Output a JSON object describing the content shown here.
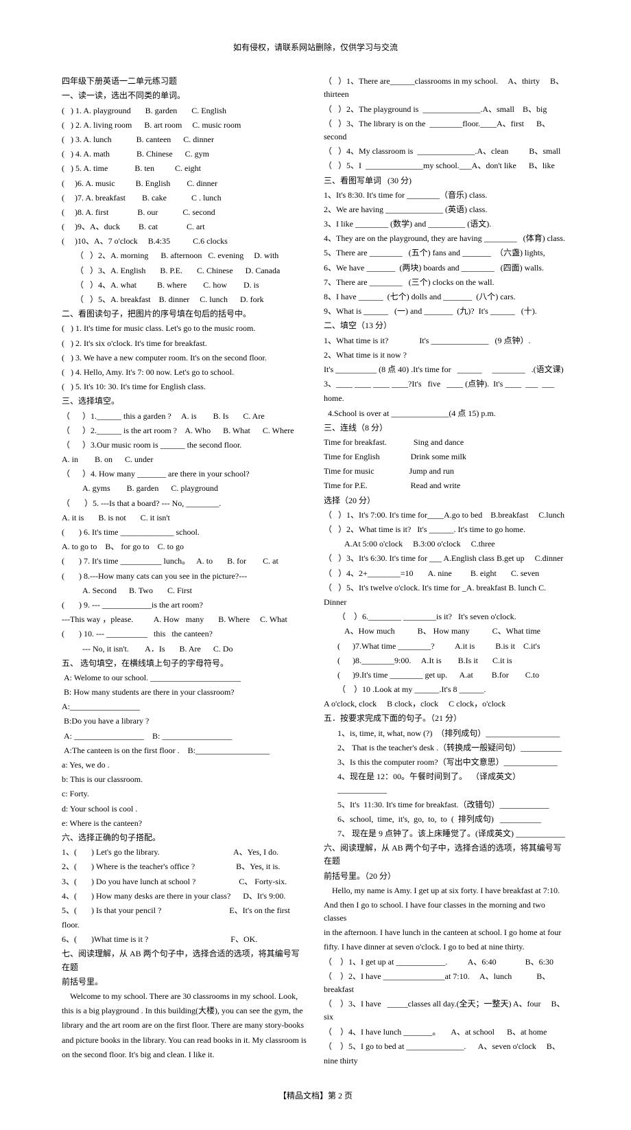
{
  "header_note": "如有侵权，请联系网站删除，仅供学习与交流",
  "left": [
    {
      "t": "四年级下册英语一二单元练习题"
    },
    {
      "t": "一、读一读，选出不同类的单词。"
    },
    {
      "t": "(   ) 1. A. playground       B. garden       C. English"
    },
    {
      "t": "(   ) 2. A. living room      B. art room     C. music room"
    },
    {
      "t": "(   ) 3. A. lunch            B. canteen      C. dinner"
    },
    {
      "t": "(   ) 4. A. math             B. Chinese      C. gym"
    },
    {
      "t": "(   ) 5. A. time             B. ten          C. eight"
    },
    {
      "t": "(     )6. A. music          B. English        C. dinner"
    },
    {
      "t": "(     )7. A. breakfast        B. cake            C . lunch"
    },
    {
      "t": "(     )8. A. first              B. our            C. second"
    },
    {
      "t": "(     )9、A、duck         B. cat              C. art"
    },
    {
      "t": "(     )10、A、7 o'clock     B.4:35           C.6 clocks"
    },
    {
      "t": "（   ）2、A. morning      B. afternoon   C. evening     D. with",
      "cls": "indent1"
    },
    {
      "t": "（   ）3、A. English       B. P.E.       C. Chinese      D. Canada",
      "cls": "indent1"
    },
    {
      "t": "（   ）4、A. what          B. where        C. how        D. is",
      "cls": "indent1"
    },
    {
      "t": "（   ）5、A. breakfast    B. dinner     C. lunch      D. fork",
      "cls": "indent1"
    },
    {
      "t": "二、看图读句子，把图片的序号填在句后的括号中。"
    },
    {
      "t": "(   ) 1. It's time for music class. Let's go to the music room."
    },
    {
      "t": "(   ) 2. It's six o'clock. It's time for breakfast."
    },
    {
      "t": "(   ) 3. We have a new computer room. It's on the second floor."
    },
    {
      "t": "(   ) 4. Hello, Amy. It's 7: 00 now. Let's go to school."
    },
    {
      "t": "(   ) 5. It's 10: 30. It's time for English class."
    },
    {
      "t": "三、选择填空。"
    },
    {
      "t": "（      ）1.______ this a garden ?     A. is        B. Is       C. Are"
    },
    {
      "t": "（      ）2.______ is the art room ?    A. Who      B. What      C. Where"
    },
    {
      "t": "（      ）3.Our music room is ______ the second floor."
    },
    {
      "t": "A. in        B. on      C. under"
    },
    {
      "t": "（      ）4. How many _______ are there in your school?"
    },
    {
      "t": "A. gyms        B. garden      C. playground",
      "cls": "indent2"
    },
    {
      "t": "（       ）5. ---Is that a board? --- No, ________."
    },
    {
      "t": "A. it is       B. is not       C. it isn't"
    },
    {
      "t": "(       ) 6. It's time _____________ school."
    },
    {
      "t": "A. to go to    B、 for go to    C. to go"
    },
    {
      "t": "(       ) 7. It's time __________ lunch。   A. to       B. for        C. at"
    },
    {
      "t": "(       ) 8.---How many cats can you see in the picture?---"
    },
    {
      "t": "A. Second      B. Two       C. First",
      "cls": "indent2"
    },
    {
      "t": "(       ) 9. --- ____________is the art room?"
    },
    {
      "t": "---This way ，please.          A. How   many       B. Where     C. What"
    },
    {
      "t": "(       ) 10. --- __________   this   the canteen?"
    },
    {
      "t": "--- No, it isn't.        A．Is       B. Are      C. Do",
      "cls": "indent2"
    },
    {
      "t": "五、 选句填空，在横线填上句子的字母符号。"
    },
    {
      "t": " A: Welome to our school. ______________________"
    },
    {
      "t": " B: How many students are there in your classroom?"
    },
    {
      "t": "A:_________________"
    },
    {
      "t": " B:Do you have a library ?"
    },
    {
      "t": " A: _________________    B: _________________"
    },
    {
      "t": " A:The canteen is on the first floor .    B:__________________"
    },
    {
      "t": "a: Yes, we do ."
    },
    {
      "t": "b: This is our classroom."
    },
    {
      "t": "c: Forty."
    },
    {
      "t": "d: Your school is cool ."
    },
    {
      "t": "e: Where is the canteen?"
    },
    {
      "t": "六、选择正确的句子搭配。"
    },
    {
      "t": "1、(       ) Let's go the library.                                    A、Yes, I do."
    },
    {
      "t": "2、(       ) Where is the teacher's office ?                    B、Yes, it is."
    },
    {
      "t": "3、(       ) Do you have lunch at school ?                     C、 Forty-six."
    },
    {
      "t": "4、(       ) How many desks are there in your class?      D、It's 9:00."
    },
    {
      "t": "5、(       ) Is that your pencil ?                                 E、It's on the first"
    },
    {
      "t": "floor."
    },
    {
      "t": "6、(       )What time is it ?                                        F、OK."
    },
    {
      "t": "七、阅读理解，从 AB 两个句子中，选择合适的选项，将其编号写在题"
    },
    {
      "t": "前括号里。"
    },
    {
      "t": "    Welcome to my school. There are 30 classrooms in my school. Look,"
    },
    {
      "t": "this is a big playground . In this building(大楼), you can see the gym, the"
    },
    {
      "t": "library and the art room are on the first floor. There are many story-books"
    },
    {
      "t": "and picture books in the library. You can read books in it. My classroom is"
    },
    {
      "t": "on the second floor. It's big and clean. I like it."
    }
  ],
  "right": [
    {
      "t": "（   ）1、There are______classrooms in my school.     A、thirty     B、thirteen"
    },
    {
      "t": "（   ）2、The playground is  ______________.A、small    B、big"
    },
    {
      "t": "（   ）3、The library is on the  ________floor.____A、first      B、second"
    },
    {
      "t": "（   ）4、My classroom is  ______________.A、clean          B、small"
    },
    {
      "t": "（   ）5、I  ______________my school.___A、don't like      B、like"
    },
    {
      "t": "三、看图写单词   (30 分)"
    },
    {
      "t": "1、It's 8:30. It's time for ________（音乐) class."
    },
    {
      "t": "2、We are having ______________ (英语) class."
    },
    {
      "t": "3、I like ________ (数学) and _________ (语文)."
    },
    {
      "t": "4、They are on the playground, they are having ________   (体育) class."
    },
    {
      "t": "5、There are ________   (五个) fans and _______  （六盏) lights,"
    },
    {
      "t": "6、We have _______  (两块) boards and ________   (四面) walls."
    },
    {
      "t": "7、There are ________   (三个) clocks on the wall."
    },
    {
      "t": "8、I have ______  (七个) dolls and _______  (八个) cars."
    },
    {
      "t": "9、What is ______   (一) and _______  (九)?  It's ______   (十)."
    },
    {
      "t": "二、填空（13 分）"
    },
    {
      "t": "1、What time is it?               It's ______________   (9 点钟）."
    },
    {
      "t": "2、What time is it now ?"
    },
    {
      "t": "It's __________ (8 点 40) .It's time for   ______     ________   .(语文课)"
    },
    {
      "t": "3、____ ____ ____ ____?It's   five   ____ (点钟).  It's ____  ___  ___"
    },
    {
      "t": "home."
    },
    {
      "t": "  4.School is over at ______________(4 点 15) p.m."
    },
    {
      "t": "三、连线（8 分）"
    },
    {
      "t": "Time for breakfast.             Sing and dance"
    },
    {
      "t": "Time for English               Drink some milk"
    },
    {
      "t": "Time for music                 Jump and run"
    },
    {
      "t": "Time for P.E.                     Read and write"
    },
    {
      "t": "选择（20 分）"
    },
    {
      "t": "（   ）1、It's 7:00. It's time for____A.go to bed    B.breakfast     C.lunch"
    },
    {
      "t": "（   ）2、What time is it?   It's ______. It's time to go home."
    },
    {
      "t": "A.At 5:00 o'clock     B.3:00 o'clock     C.three",
      "cls": "indent2"
    },
    {
      "t": "（   ）3、It's 6:30. It's time for ___ A.English class B.get up     C.dinner"
    },
    {
      "t": "（   ）4、2+________=10       A. nine         B. eight       C. seven"
    },
    {
      "t": "（   ）5、It's twelve o'clock. It's time for _A. breakfast B. lunch C."
    },
    {
      "t": "Dinner"
    },
    {
      "t": "（    ）6.________ ________is it?   It's seven o'clock.",
      "cls": "indent1"
    },
    {
      "t": "A、How much           B、 How many           C、What time",
      "cls": "indent2"
    },
    {
      "t": "(      )7.What time ________?          A.it is          B.is it    C.it's",
      "cls": "indent1"
    },
    {
      "t": "(      )8.________9:00.     A.It is        B.Is it       C.it is",
      "cls": "indent1"
    },
    {
      "t": "(      )9.It's time ________ get up.      A.at         B.for        C.to",
      "cls": "indent1"
    },
    {
      "t": "（    ）10 .Look at my ______.It's 8 ______.",
      "cls": "indent1"
    },
    {
      "t": "A o'clock, clock     B clock，clock     C clock，o'clock"
    },
    {
      "t": "五．按要求完成下面的句子。（21 分）"
    },
    {
      "t": "1、is, time, it, what, now (?)  （排列成句）__________________",
      "cls": "indent1"
    },
    {
      "t": "2、 That is the teacher's desk .（转换成一般疑问句）__________",
      "cls": "indent1"
    },
    {
      "t": "3、Is this the computer room?（写出中文意思）_____________",
      "cls": "indent1"
    },
    {
      "t": "4、现在是 12：00。午餐时间到了。  （译成英文）____________",
      "cls": "indent1"
    },
    {
      "t": "5、It's  11:30. It's time for breakfast.（改错句）____________",
      "cls": "indent1"
    },
    {
      "t": "6、school,  time,  it's,  go,  to,  to  (  排列成句)   __________",
      "cls": "indent1"
    },
    {
      "t": "7、 现在是 9 点钟了。该上床睡觉了。(译成英文) ____________",
      "cls": "indent1"
    },
    {
      "t": "六、阅读理解，从 AB 两个句子中，选择合适的选项，将其编号写在题"
    },
    {
      "t": "前括号里。（20 分）"
    },
    {
      "t": "    Hello, my name is Amy. I get up at six forty. I have breakfast at 7:10."
    },
    {
      "t": "And then I go to school. I have four classes in the morning and two classes"
    },
    {
      "t": "in the afternoon. I have lunch in the canteen at school. I go home at four"
    },
    {
      "t": "fifty. I have dinner at seven o'clock. I go to bed at nine thirty."
    },
    {
      "t": "（    ）1、I get up at ____________.          A、6:40              B、6:30"
    },
    {
      "t": "（    ）2、I have _______________at 7:10.     A、lunch            B、breakfast"
    },
    {
      "t": "（    ）3、I have   _____classes all day.(全天；一整天) A、four     B、six"
    },
    {
      "t": "（    ）4、I have lunch _______。     A、at school      B、at home"
    },
    {
      "t": "（    ）5、I go to bed at ______________.      A、seven o'clock     B、"
    },
    {
      "t": "nine thirty"
    }
  ],
  "footer": "【精品文档】第 2 页"
}
